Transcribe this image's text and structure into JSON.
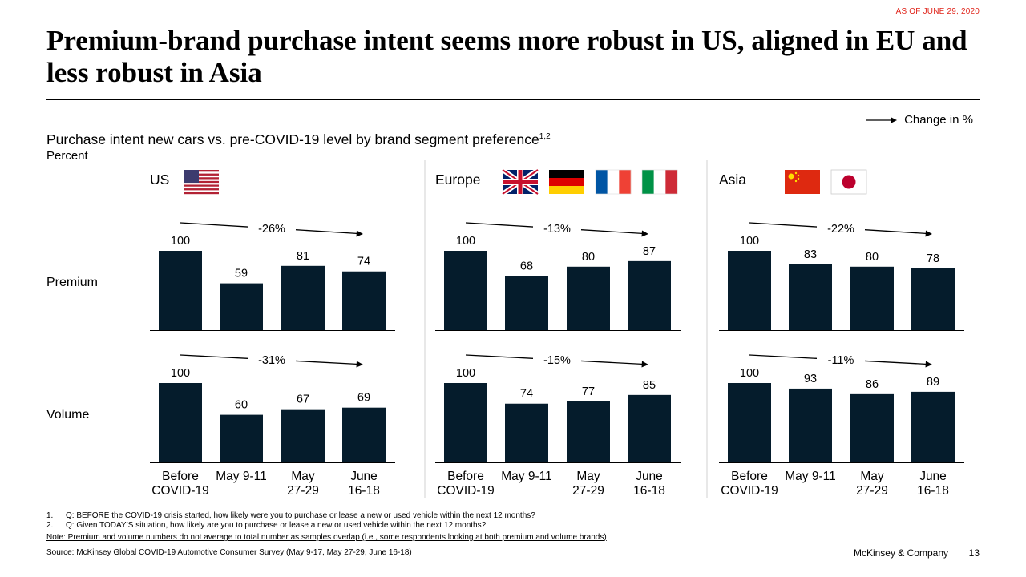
{
  "header": {
    "as_of": "AS OF JUNE 29, 2020",
    "title": "Premium-brand purchase intent seems more robust in US, aligned in EU and less robust in Asia"
  },
  "legend": {
    "label": "Change in %",
    "icon": "arrow-right-icon"
  },
  "subtitle": {
    "text": "Purchase intent new cars vs. pre-COVID-19 level by brand segment preference",
    "sup": "1,2"
  },
  "unit": "Percent",
  "row_labels": {
    "premium": "Premium",
    "volume": "Volume"
  },
  "colors": {
    "bar": "#051c2c",
    "accent": "#e0251b",
    "text": "#000000",
    "divider": "#d0d0d0"
  },
  "chart_data": {
    "type": "bar",
    "categories": [
      [
        "Before",
        "COVID-19"
      ],
      [
        "May 9-11",
        ""
      ],
      [
        "May",
        "27-29"
      ],
      [
        "June",
        "16-18"
      ]
    ],
    "ylim": [
      0,
      100
    ],
    "panels": [
      {
        "region": "US",
        "flags": [
          "us-flag-icon"
        ],
        "series": [
          {
            "name": "Premium",
            "values": [
              100,
              59,
              81,
              74
            ],
            "change": "-26%"
          },
          {
            "name": "Volume",
            "values": [
              100,
              60,
              67,
              69
            ],
            "change": "-31%"
          }
        ]
      },
      {
        "region": "Europe",
        "flags": [
          "uk-flag-icon",
          "germany-flag-icon",
          "france-flag-icon",
          "italy-flag-icon"
        ],
        "series": [
          {
            "name": "Premium",
            "values": [
              100,
              68,
              80,
              87
            ],
            "change": "-13%"
          },
          {
            "name": "Volume",
            "values": [
              100,
              74,
              77,
              85
            ],
            "change": "-15%"
          }
        ]
      },
      {
        "region": "Asia",
        "flags": [
          "china-flag-icon",
          "japan-flag-icon"
        ],
        "series": [
          {
            "name": "Premium",
            "values": [
              100,
              83,
              80,
              78
            ],
            "change": "-22%"
          },
          {
            "name": "Volume",
            "values": [
              100,
              93,
              86,
              89
            ],
            "change": "-11%"
          }
        ]
      }
    ]
  },
  "footnotes": [
    {
      "num": "1.",
      "text": "Q: BEFORE the COVID-19 crisis started, how likely were you to purchase or lease a new or used vehicle within the next 12 months?"
    },
    {
      "num": "2.",
      "text": "Q: Given TODAY’S situation, how likely are you to purchase or lease a new or used vehicle within the next 12 months?"
    }
  ],
  "note": "Note: Premium and volume numbers do not average to total number as samples overlap (i.e., some respondents looking at both premium and volume brands)",
  "source": "Source: McKinsey Global COVID-19 Automotive Consumer Survey (May 9-17, May 27-29, June 16-18)",
  "footer": {
    "company": "McKinsey & Company",
    "page": "13"
  }
}
